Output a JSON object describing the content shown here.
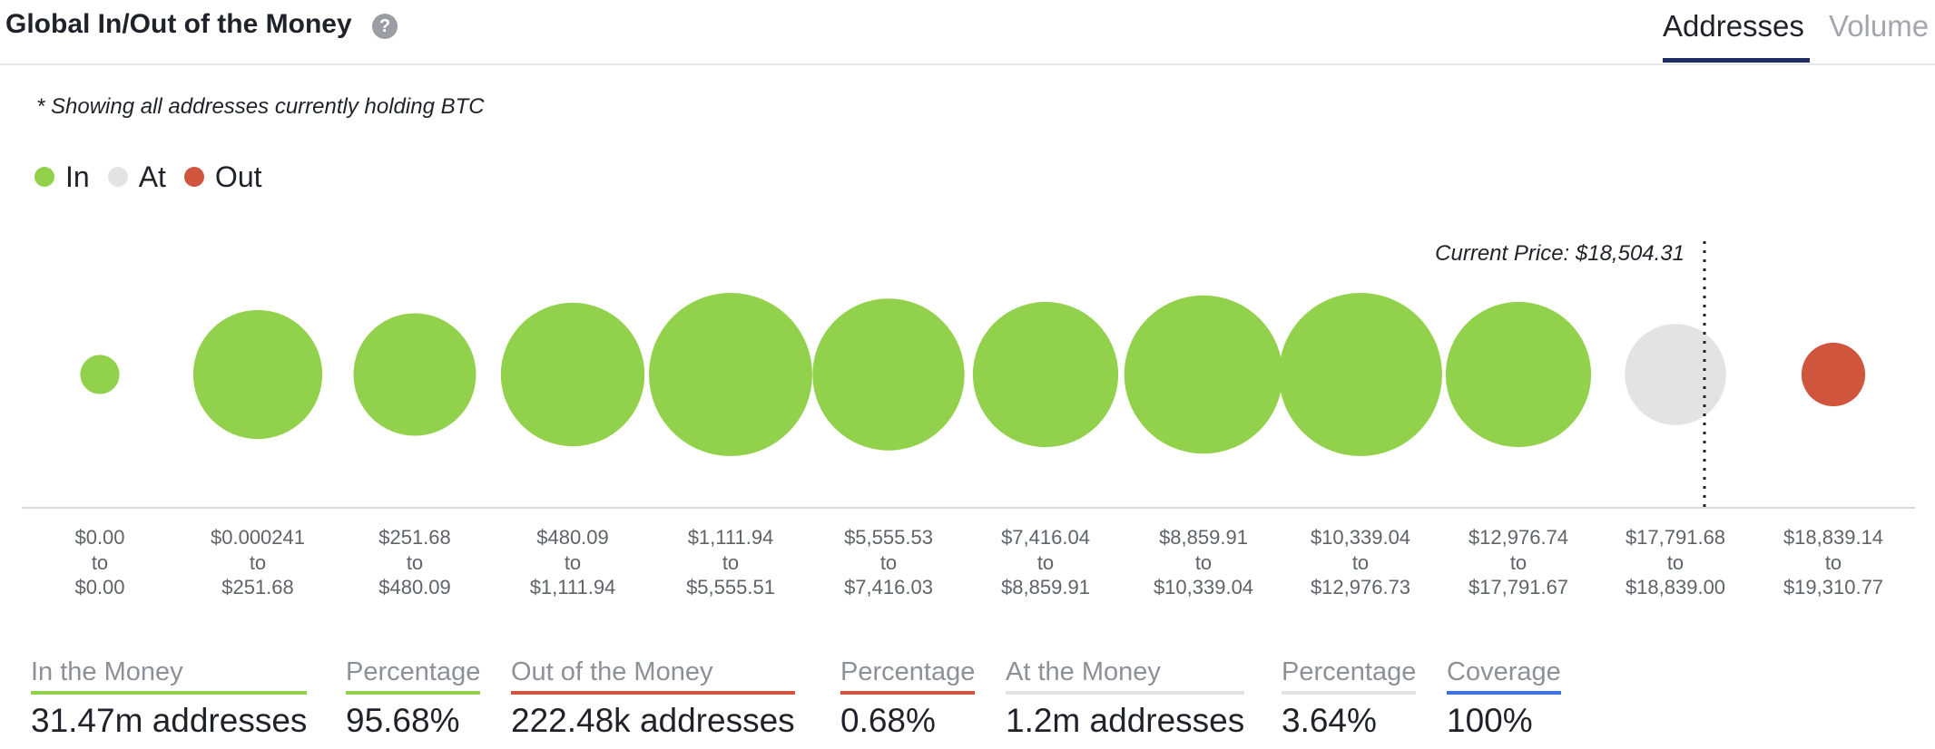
{
  "header": {
    "title": "Global In/Out of the Money",
    "help_icon": "question-circle-icon",
    "tabs": [
      {
        "label": "Addresses",
        "active": true
      },
      {
        "label": "Volume",
        "active": false
      }
    ]
  },
  "note": "* Showing all addresses currently holding BTC",
  "legend": [
    {
      "label": "In",
      "color": "#92d14b"
    },
    {
      "label": "At",
      "color": "#e3e3e3"
    },
    {
      "label": "Out",
      "color": "#cf553d"
    }
  ],
  "chart_data": {
    "type": "scatter",
    "current_price_label": "Current Price: $18,504.31",
    "current_price": 18504.31,
    "bubbles": [
      {
        "range_from": "$0.00",
        "range_to": "$0.00",
        "status": "In",
        "relative_size": 0.24
      },
      {
        "range_from": "$0.000241",
        "range_to": "$251.68",
        "status": "In",
        "relative_size": 0.79
      },
      {
        "range_from": "$251.68",
        "range_to": "$480.09",
        "status": "In",
        "relative_size": 0.75
      },
      {
        "range_from": "$480.09",
        "range_to": "$1,111.94",
        "status": "In",
        "relative_size": 0.88
      },
      {
        "range_from": "$1,111.94",
        "range_to": "$5,555.51",
        "status": "In",
        "relative_size": 1.0
      },
      {
        "range_from": "$5,555.53",
        "range_to": "$7,416.03",
        "status": "In",
        "relative_size": 0.93
      },
      {
        "range_from": "$7,416.04",
        "range_to": "$8,859.91",
        "status": "In",
        "relative_size": 0.89
      },
      {
        "range_from": "$8,859.91",
        "range_to": "$10,339.04",
        "status": "In",
        "relative_size": 0.97
      },
      {
        "range_from": "$10,339.04",
        "range_to": "$12,976.73",
        "status": "In",
        "relative_size": 1.0
      },
      {
        "range_from": "$12,976.74",
        "range_to": "$17,791.67",
        "status": "In",
        "relative_size": 0.89
      },
      {
        "range_from": "$17,791.68",
        "range_to": "$18,839.00",
        "status": "At",
        "relative_size": 0.62
      },
      {
        "range_from": "$18,839.14",
        "range_to": "$19,310.77",
        "status": "Out",
        "relative_size": 0.39
      }
    ],
    "range_separator": "to"
  },
  "stats": [
    {
      "label": "In the Money",
      "value": "31.47m addresses",
      "color": "#92d14b"
    },
    {
      "label": "Percentage",
      "value": "95.68%",
      "color": "#92d14b"
    },
    {
      "label": "Out of the Money",
      "value": "222.48k addresses",
      "color": "#cf553d"
    },
    {
      "label": "Percentage",
      "value": "0.68%",
      "color": "#cf553d"
    },
    {
      "label": "At the Money",
      "value": "1.2m addresses",
      "color": "#e3e3e3"
    },
    {
      "label": "Percentage",
      "value": "3.64%",
      "color": "#e3e3e3"
    },
    {
      "label": "Coverage",
      "value": "100%",
      "color": "#3b73e0"
    }
  ]
}
